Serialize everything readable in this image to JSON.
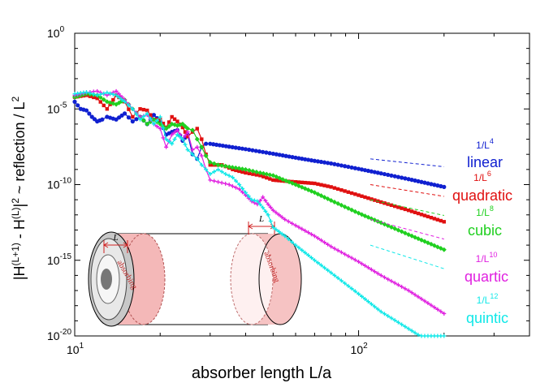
{
  "chart_data": {
    "type": "line",
    "xscale": "log",
    "yscale": "log",
    "xlim": [
      10,
      400
    ],
    "ylim": [
      1e-20,
      1
    ],
    "xlabel": "absorber length L/a",
    "ylabel": "|H^(L+1) - H^(L)|^2  ~ reflection / L^2",
    "x_ticks": [
      {
        "base": "10",
        "exp": "1",
        "value": 10
      },
      {
        "base": "10",
        "exp": "2",
        "value": 100
      }
    ],
    "y_ticks": [
      {
        "base": "10",
        "exp": "0",
        "value": 1
      },
      {
        "base": "10",
        "exp": "-5",
        "value": 1e-05
      },
      {
        "base": "10",
        "exp": "-10",
        "value": 1e-10
      },
      {
        "base": "10",
        "exp": "-15",
        "value": 1e-15
      },
      {
        "base": "10",
        "exp": "-20",
        "value": 1e-20
      }
    ],
    "grid": false,
    "series": [
      {
        "name": "linear",
        "color": "#1020d0",
        "scaling_base": "1/L",
        "scaling_exp": "4",
        "x": [
          10,
          10.5,
          11,
          11.5,
          12,
          12.5,
          13,
          14,
          15,
          16,
          17,
          18,
          19,
          20,
          21,
          22,
          23,
          24,
          25,
          26,
          27,
          28,
          29,
          30,
          35,
          40,
          50,
          60,
          70,
          80,
          100,
          120,
          150,
          200
        ],
        "y": [
          3e-05,
          1e-05,
          8e-06,
          3e-06,
          1.5e-06,
          2e-06,
          3e-06,
          2e-06,
          5e-06,
          1.5e-06,
          3e-06,
          1e-06,
          4e-06,
          1.5e-06,
          2e-07,
          3e-07,
          4e-07,
          8e-08,
          2e-07,
          1e-08,
          5e-09,
          3e-08,
          5e-08,
          5e-08,
          3.2e-08,
          2.2e-08,
          1.1e-08,
          6e-09,
          3.7e-09,
          2.5e-09,
          1.1e-09,
          5.5e-10,
          2.3e-10,
          7e-11
        ]
      },
      {
        "name": "quadratic",
        "color": "#e01010",
        "scaling_base": "1/L",
        "scaling_exp": "6",
        "x": [
          10,
          11,
          12,
          13,
          14,
          15,
          16,
          17,
          18,
          19,
          20,
          21,
          22,
          23,
          24,
          25,
          26,
          27,
          28,
          29,
          30,
          33,
          36,
          40,
          45,
          50,
          55,
          60,
          70,
          80,
          100,
          120,
          150,
          200
        ],
        "y": [
          6e-05,
          8e-05,
          5e-05,
          1e-05,
          8e-05,
          3e-05,
          3e-06,
          1e-05,
          8e-06,
          2e-06,
          2e-06,
          6e-07,
          3e-06,
          1.5e-06,
          6e-07,
          1.5e-07,
          3e-07,
          5e-07,
          1e-07,
          1e-08,
          2e-09,
          2e-09,
          1e-09,
          6e-10,
          4e-10,
          2e-10,
          1.7e-10,
          1.5e-10,
          1.2e-10,
          7e-11,
          2e-11,
          7e-12,
          2e-12,
          3.5e-13
        ]
      },
      {
        "name": "cubic",
        "color": "#20d020",
        "scaling_base": "1/L",
        "scaling_exp": "8",
        "x": [
          10,
          11,
          12,
          13,
          14,
          15,
          16,
          17,
          18,
          19,
          20,
          21,
          22,
          23,
          24,
          25,
          26,
          27,
          28,
          29,
          30,
          32,
          35,
          40,
          45,
          50,
          60,
          70,
          80,
          100,
          120,
          150,
          200
        ],
        "y": [
          6e-05,
          0.0001,
          8e-05,
          3e-05,
          2e-05,
          4e-05,
          1e-05,
          3e-06,
          1e-06,
          2e-06,
          1e-06,
          5e-07,
          1e-06,
          8e-07,
          1e-06,
          5e-07,
          4e-07,
          1e-07,
          3e-08,
          8e-09,
          3e-09,
          2e-09,
          1.5e-09,
          1e-09,
          6e-10,
          4e-10,
          1e-10,
          3e-11,
          9e-12,
          1.3e-12,
          3e-13,
          5e-14,
          5e-15
        ]
      },
      {
        "name": "quartic",
        "color": "#e020e0",
        "scaling_base": "1/L",
        "scaling_exp": "10",
        "x": [
          10,
          11,
          12,
          13,
          14,
          15,
          16,
          17,
          18,
          19,
          20,
          21,
          22,
          23,
          24,
          25,
          26,
          27,
          28,
          29,
          30,
          32,
          35,
          38,
          40,
          42,
          44,
          46,
          48,
          50,
          55,
          60,
          70,
          80,
          100,
          120,
          150,
          200
        ],
        "y": [
          8e-05,
          0.00012,
          0.00015,
          8e-05,
          0.00015,
          4e-05,
          1e-05,
          3e-06,
          4e-06,
          1e-06,
          5e-07,
          3e-08,
          2e-07,
          4e-07,
          1e-07,
          3e-07,
          2e-08,
          3e-08,
          8e-09,
          1e-09,
          2e-10,
          1.5e-10,
          1e-10,
          5e-11,
          2e-11,
          8e-12,
          5e-12,
          1.5e-11,
          5e-12,
          2e-12,
          5e-13,
          2e-13,
          4e-14,
          8e-15,
          8e-16,
          1e-16,
          1e-17,
          3e-19
        ]
      },
      {
        "name": "quintic",
        "color": "#10e8e8",
        "scaling_base": "1/L",
        "scaling_exp": "12",
        "x": [
          10,
          11,
          12,
          13,
          14,
          15,
          16,
          17,
          18,
          19,
          20,
          21,
          22,
          23,
          24,
          25,
          26,
          27,
          28,
          29,
          30,
          32,
          34,
          36,
          38,
          40,
          42,
          44,
          46,
          48,
          50,
          55,
          60,
          70,
          80,
          100,
          120,
          150,
          200
        ],
        "y": [
          0.0001,
          0.00013,
          8e-05,
          0.00012,
          8e-05,
          3e-05,
          1e-05,
          2e-06,
          5e-06,
          1e-06,
          3e-06,
          1e-07,
          5e-08,
          2e-07,
          1e-07,
          2e-08,
          1e-08,
          5e-09,
          2e-09,
          1e-09,
          5e-10,
          1e-09,
          5e-10,
          3e-10,
          1e-10,
          3e-11,
          1e-11,
          8e-12,
          3e-12,
          1e-12,
          1.5e-13,
          4e-14,
          1e-14,
          1e-15,
          1.5e-16,
          6e-18,
          4e-19,
          3e-20,
          1e-21
        ]
      }
    ],
    "inset": {
      "label_L": "L",
      "absorbing_text": "absorbing"
    }
  }
}
